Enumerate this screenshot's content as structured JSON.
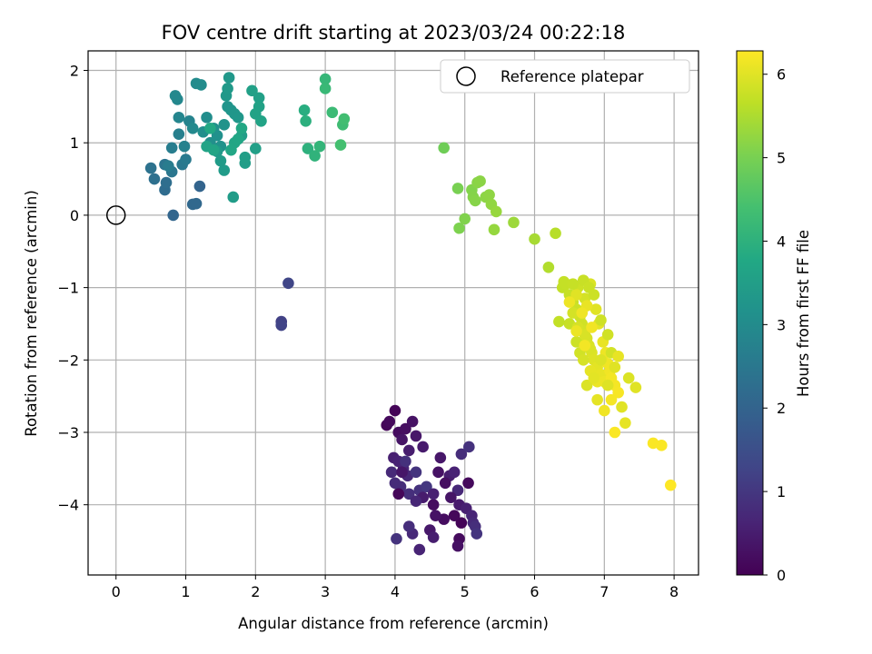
{
  "chart_data": {
    "type": "scatter",
    "title": "FOV centre drift starting at 2023/03/24 00:22:18",
    "xlabel": "Angular distance from reference (arcmin)",
    "ylabel": "Rotation from reference (arcmin)",
    "xlim": [
      -0.4,
      8.35
    ],
    "ylim": [
      -4.97,
      2.27
    ],
    "xticks": [
      0,
      1,
      2,
      3,
      4,
      5,
      6,
      7,
      8
    ],
    "yticks": [
      -4,
      -3,
      -2,
      -1,
      0,
      1,
      2
    ],
    "x_tick_labels": [
      "0",
      "1",
      "2",
      "3",
      "4",
      "5",
      "6",
      "7",
      "8"
    ],
    "y_tick_labels": [
      "−4",
      "−3",
      "−2",
      "−1",
      "0",
      "1",
      "2"
    ],
    "grid": true,
    "legend": {
      "placement": "top-right",
      "label": "Reference platepar"
    },
    "reference_point": {
      "x": 0.0,
      "y": 0.0
    },
    "colorbar": {
      "label": "Hours from first FF file",
      "range": [
        0,
        6.28
      ],
      "ticks": [
        0,
        1,
        2,
        3,
        4,
        5,
        6
      ],
      "tick_labels": [
        "0",
        "1",
        "2",
        "3",
        "4",
        "5",
        "6"
      ],
      "colormap": "viridis"
    },
    "points": [
      [
        4.0,
        -2.7,
        0.05
      ],
      [
        3.88,
        -2.9,
        0.1
      ],
      [
        3.92,
        -2.85,
        0.15
      ],
      [
        4.05,
        -3.0,
        0.2
      ],
      [
        4.15,
        -2.95,
        0.25
      ],
      [
        4.25,
        -2.85,
        0.3
      ],
      [
        4.1,
        -3.1,
        0.35
      ],
      [
        4.3,
        -3.05,
        0.4
      ],
      [
        4.4,
        -3.2,
        0.45
      ],
      [
        4.2,
        -3.25,
        0.5
      ],
      [
        3.98,
        -3.35,
        0.55
      ],
      [
        4.05,
        -3.4,
        0.6
      ],
      [
        4.12,
        -3.5,
        0.65
      ],
      [
        4.18,
        -3.6,
        0.7
      ],
      [
        3.95,
        -3.55,
        0.75
      ],
      [
        4.08,
        -3.75,
        0.8
      ],
      [
        4.2,
        -3.85,
        0.85
      ],
      [
        4.35,
        -3.8,
        0.9
      ],
      [
        4.3,
        -3.55,
        0.95
      ],
      [
        4.45,
        -3.75,
        1.0
      ],
      [
        4.05,
        -3.85,
        0.1
      ],
      [
        4.55,
        -4.0,
        0.2
      ],
      [
        4.62,
        -3.55,
        0.3
      ],
      [
        4.65,
        -3.35,
        0.4
      ],
      [
        4.78,
        -3.6,
        0.5
      ],
      [
        4.85,
        -3.55,
        0.6
      ],
      [
        4.9,
        -3.8,
        0.7
      ],
      [
        4.95,
        -3.3,
        0.8
      ],
      [
        5.06,
        -3.2,
        0.9
      ],
      [
        5.05,
        -3.7,
        0.15
      ],
      [
        4.72,
        -3.7,
        0.25
      ],
      [
        4.8,
        -3.9,
        0.35
      ],
      [
        4.92,
        -4.0,
        0.45
      ],
      [
        5.02,
        -4.05,
        0.55
      ],
      [
        5.1,
        -4.15,
        0.65
      ],
      [
        5.12,
        -4.25,
        0.75
      ],
      [
        5.15,
        -4.3,
        0.85
      ],
      [
        5.17,
        -4.4,
        0.95
      ],
      [
        4.95,
        -4.25,
        0.05
      ],
      [
        4.85,
        -4.15,
        0.12
      ],
      [
        4.7,
        -4.2,
        0.22
      ],
      [
        4.58,
        -4.15,
        0.32
      ],
      [
        4.5,
        -4.35,
        0.42
      ],
      [
        4.55,
        -4.45,
        0.52
      ],
      [
        4.35,
        -4.62,
        0.62
      ],
      [
        4.25,
        -4.4,
        0.72
      ],
      [
        4.2,
        -4.3,
        0.82
      ],
      [
        4.02,
        -4.47,
        0.92
      ],
      [
        4.92,
        -4.47,
        0.18
      ],
      [
        4.9,
        -4.57,
        0.28
      ],
      [
        4.1,
        -3.55,
        0.38
      ],
      [
        4.4,
        -3.9,
        0.48
      ],
      [
        4.55,
        -3.85,
        0.58
      ],
      [
        4.3,
        -3.95,
        0.68
      ],
      [
        4.0,
        -3.7,
        0.78
      ],
      [
        4.15,
        -3.4,
        0.88
      ],
      [
        2.37,
        -1.47,
        1.2
      ],
      [
        2.37,
        -1.52,
        1.25
      ],
      [
        2.47,
        -0.94,
        1.3
      ],
      [
        1.2,
        0.4,
        2.0
      ],
      [
        0.82,
        0.0,
        2.05
      ],
      [
        1.1,
        0.15,
        2.1
      ],
      [
        1.15,
        0.16,
        2.12
      ],
      [
        0.7,
        0.35,
        2.2
      ],
      [
        0.72,
        0.45,
        2.25
      ],
      [
        0.55,
        0.5,
        2.3
      ],
      [
        0.5,
        0.65,
        2.35
      ],
      [
        0.7,
        0.7,
        2.4
      ],
      [
        0.8,
        0.6,
        2.45
      ],
      [
        0.95,
        0.7,
        2.5
      ],
      [
        1.0,
        0.77,
        2.55
      ],
      [
        0.75,
        0.68,
        2.6
      ],
      [
        0.8,
        0.93,
        2.65
      ],
      [
        0.9,
        1.12,
        2.7
      ],
      [
        0.98,
        0.95,
        2.75
      ],
      [
        1.05,
        1.3,
        2.8
      ],
      [
        0.9,
        1.35,
        2.85
      ],
      [
        0.88,
        1.6,
        2.9
      ],
      [
        0.85,
        1.65,
        2.92
      ],
      [
        1.1,
        1.2,
        2.95
      ],
      [
        1.15,
        1.82,
        3.0
      ],
      [
        1.22,
        1.8,
        3.02
      ],
      [
        1.3,
        1.35,
        3.05
      ],
      [
        1.25,
        1.15,
        3.08
      ],
      [
        1.35,
        1.0,
        3.1
      ],
      [
        1.4,
        1.2,
        3.12
      ],
      [
        1.45,
        1.1,
        3.15
      ],
      [
        1.5,
        0.95,
        3.18
      ],
      [
        1.55,
        1.25,
        3.2
      ],
      [
        1.6,
        1.5,
        3.22
      ],
      [
        1.65,
        1.45,
        3.25
      ],
      [
        1.7,
        1.4,
        3.28
      ],
      [
        1.75,
        1.35,
        3.3
      ],
      [
        1.62,
        1.9,
        3.32
      ],
      [
        1.58,
        1.65,
        3.34
      ],
      [
        1.6,
        1.75,
        3.36
      ],
      [
        1.45,
        0.88,
        3.38
      ],
      [
        1.55,
        0.62,
        3.4
      ],
      [
        1.5,
        0.75,
        3.42
      ],
      [
        1.68,
        0.25,
        3.44
      ],
      [
        1.8,
        1.1,
        3.46
      ],
      [
        1.85,
        0.72,
        3.48
      ],
      [
        1.85,
        0.8,
        3.5
      ],
      [
        2.0,
        0.92,
        3.52
      ],
      [
        1.95,
        1.72,
        3.54
      ],
      [
        2.05,
        1.62,
        3.56
      ],
      [
        2.05,
        1.5,
        3.58
      ],
      [
        2.0,
        1.4,
        3.6
      ],
      [
        2.08,
        1.3,
        3.62
      ],
      [
        1.3,
        0.95,
        3.64
      ],
      [
        1.4,
        0.9,
        3.66
      ],
      [
        1.7,
        1.0,
        3.68
      ],
      [
        1.65,
        0.9,
        3.7
      ],
      [
        1.75,
        1.05,
        3.72
      ],
      [
        1.8,
        1.2,
        3.74
      ],
      [
        1.35,
        1.2,
        3.76
      ],
      [
        2.7,
        1.45,
        3.9
      ],
      [
        2.72,
        1.3,
        3.95
      ],
      [
        2.75,
        0.92,
        4.0
      ],
      [
        2.85,
        0.82,
        4.05
      ],
      [
        2.92,
        0.95,
        4.1
      ],
      [
        3.0,
        1.88,
        4.15
      ],
      [
        3.0,
        1.75,
        4.2
      ],
      [
        3.1,
        1.42,
        4.25
      ],
      [
        3.25,
        1.25,
        4.3
      ],
      [
        3.27,
        1.33,
        4.35
      ],
      [
        3.22,
        0.97,
        4.4
      ],
      [
        4.7,
        0.93,
        4.9
      ],
      [
        4.9,
        0.37,
        5.0
      ],
      [
        4.92,
        -0.18,
        5.05
      ],
      [
        5.0,
        -0.05,
        5.08
      ],
      [
        5.1,
        0.35,
        5.1
      ],
      [
        5.12,
        0.25,
        5.12
      ],
      [
        5.15,
        0.2,
        5.14
      ],
      [
        5.18,
        0.45,
        5.16
      ],
      [
        5.22,
        0.47,
        5.18
      ],
      [
        5.3,
        0.25,
        5.2
      ],
      [
        5.35,
        0.28,
        5.22
      ],
      [
        5.38,
        0.15,
        5.25
      ],
      [
        5.42,
        -0.2,
        5.28
      ],
      [
        5.45,
        0.05,
        5.3
      ],
      [
        5.7,
        -0.1,
        5.35
      ],
      [
        6.0,
        -0.33,
        5.45
      ],
      [
        6.2,
        -0.72,
        5.55
      ],
      [
        6.3,
        -0.25,
        5.6
      ],
      [
        6.4,
        -1.0,
        5.7
      ],
      [
        6.45,
        -0.95,
        5.72
      ],
      [
        6.5,
        -1.1,
        5.74
      ],
      [
        6.55,
        -1.2,
        5.76
      ],
      [
        6.6,
        -1.3,
        5.78
      ],
      [
        6.62,
        -1.0,
        5.8
      ],
      [
        6.65,
        -1.4,
        5.82
      ],
      [
        6.68,
        -1.5,
        5.84
      ],
      [
        6.7,
        -1.6,
        5.86
      ],
      [
        6.72,
        -1.15,
        5.88
      ],
      [
        6.75,
        -1.7,
        5.9
      ],
      [
        6.78,
        -1.8,
        5.92
      ],
      [
        6.8,
        -0.95,
        5.94
      ],
      [
        6.82,
        -1.9,
        5.96
      ],
      [
        6.85,
        -2.0,
        5.98
      ],
      [
        6.88,
        -1.3,
        6.0
      ],
      [
        6.9,
        -2.1,
        6.02
      ],
      [
        6.92,
        -1.5,
        6.04
      ],
      [
        6.95,
        -2.2,
        6.06
      ],
      [
        6.98,
        -1.75,
        6.08
      ],
      [
        7.0,
        -2.3,
        6.1
      ],
      [
        7.02,
        -1.9,
        6.12
      ],
      [
        7.05,
        -2.05,
        6.14
      ],
      [
        7.08,
        -2.15,
        6.16
      ],
      [
        7.1,
        -2.25,
        6.18
      ],
      [
        7.15,
        -2.35,
        6.2
      ],
      [
        7.2,
        -2.45,
        6.22
      ],
      [
        6.5,
        -1.5,
        5.75
      ],
      [
        6.6,
        -1.75,
        5.8
      ],
      [
        6.65,
        -1.9,
        5.85
      ],
      [
        6.7,
        -2.0,
        5.9
      ],
      [
        6.75,
        -2.35,
        5.95
      ],
      [
        6.6,
        -1.1,
        6.0
      ],
      [
        6.8,
        -2.15,
        6.05
      ],
      [
        6.9,
        -2.3,
        6.1
      ],
      [
        7.0,
        -2.7,
        6.15
      ],
      [
        7.1,
        -2.55,
        6.2
      ],
      [
        7.15,
        -3.0,
        6.25
      ],
      [
        7.25,
        -2.65,
        6.0
      ],
      [
        7.3,
        -2.87,
        6.05
      ],
      [
        7.35,
        -2.25,
        5.95
      ],
      [
        7.45,
        -2.38,
        6.0
      ],
      [
        7.7,
        -3.15,
        6.25
      ],
      [
        7.82,
        -3.18,
        6.25
      ],
      [
        7.95,
        -3.73,
        6.28
      ],
      [
        6.35,
        -1.47,
        5.7
      ],
      [
        6.42,
        -0.92,
        5.72
      ],
      [
        6.55,
        -0.95,
        5.74
      ],
      [
        6.7,
        -0.9,
        5.76
      ],
      [
        6.78,
        -1.0,
        5.78
      ],
      [
        6.85,
        -1.1,
        5.8
      ],
      [
        6.95,
        -1.45,
        5.82
      ],
      [
        7.05,
        -1.65,
        5.84
      ],
      [
        7.1,
        -1.9,
        5.86
      ],
      [
        6.55,
        -1.35,
        5.88
      ],
      [
        6.62,
        -1.55,
        5.9
      ],
      [
        6.72,
        -1.65,
        5.92
      ],
      [
        6.8,
        -1.85,
        5.94
      ],
      [
        6.95,
        -2.0,
        5.96
      ],
      [
        7.05,
        -2.35,
        5.98
      ],
      [
        7.15,
        -2.1,
        6.0
      ],
      [
        6.85,
        -2.25,
        6.02
      ],
      [
        6.9,
        -2.55,
        6.04
      ],
      [
        7.2,
        -1.95,
        6.06
      ],
      [
        6.75,
        -1.25,
        6.08
      ],
      [
        6.6,
        -1.6,
        6.1
      ],
      [
        6.5,
        -1.2,
        6.12
      ],
      [
        6.68,
        -1.35,
        6.14
      ],
      [
        6.82,
        -1.55,
        6.16
      ],
      [
        6.72,
        -1.8,
        6.18
      ]
    ]
  }
}
